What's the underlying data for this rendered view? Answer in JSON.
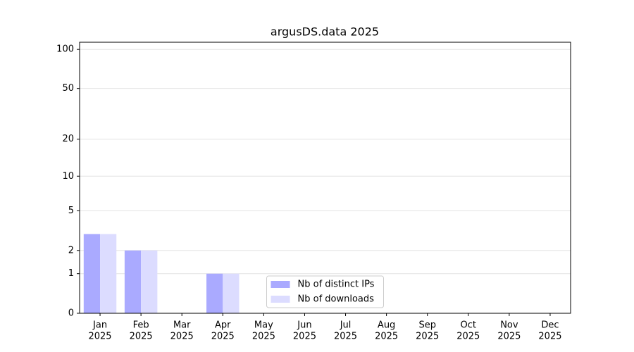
{
  "chart_data": {
    "type": "bar",
    "title": "argusDS.data 2025",
    "yscale": "log1p",
    "categories": [
      [
        "Jan",
        "2025"
      ],
      [
        "Feb",
        "2025"
      ],
      [
        "Mar",
        "2025"
      ],
      [
        "Apr",
        "2025"
      ],
      [
        "May",
        "2025"
      ],
      [
        "Jun",
        "2025"
      ],
      [
        "Jul",
        "2025"
      ],
      [
        "Aug",
        "2025"
      ],
      [
        "Sep",
        "2025"
      ],
      [
        "Oct",
        "2025"
      ],
      [
        "Nov",
        "2025"
      ],
      [
        "Dec",
        "2025"
      ]
    ],
    "series": [
      {
        "name": "Nb of distinct IPs",
        "color": "#aaaaff",
        "values": [
          3,
          2,
          0,
          1,
          0,
          0,
          0,
          0,
          0,
          0,
          0,
          0
        ]
      },
      {
        "name": "Nb of downloads",
        "color": "#dcdcff",
        "values": [
          3,
          2,
          0,
          1,
          0,
          0,
          0,
          0,
          0,
          0,
          0,
          0
        ]
      }
    ],
    "ylim": [
      0,
      113.5
    ],
    "yticks": [
      0,
      1,
      2,
      5,
      10,
      20,
      50,
      100
    ],
    "grid": true,
    "legend": "lower center"
  }
}
